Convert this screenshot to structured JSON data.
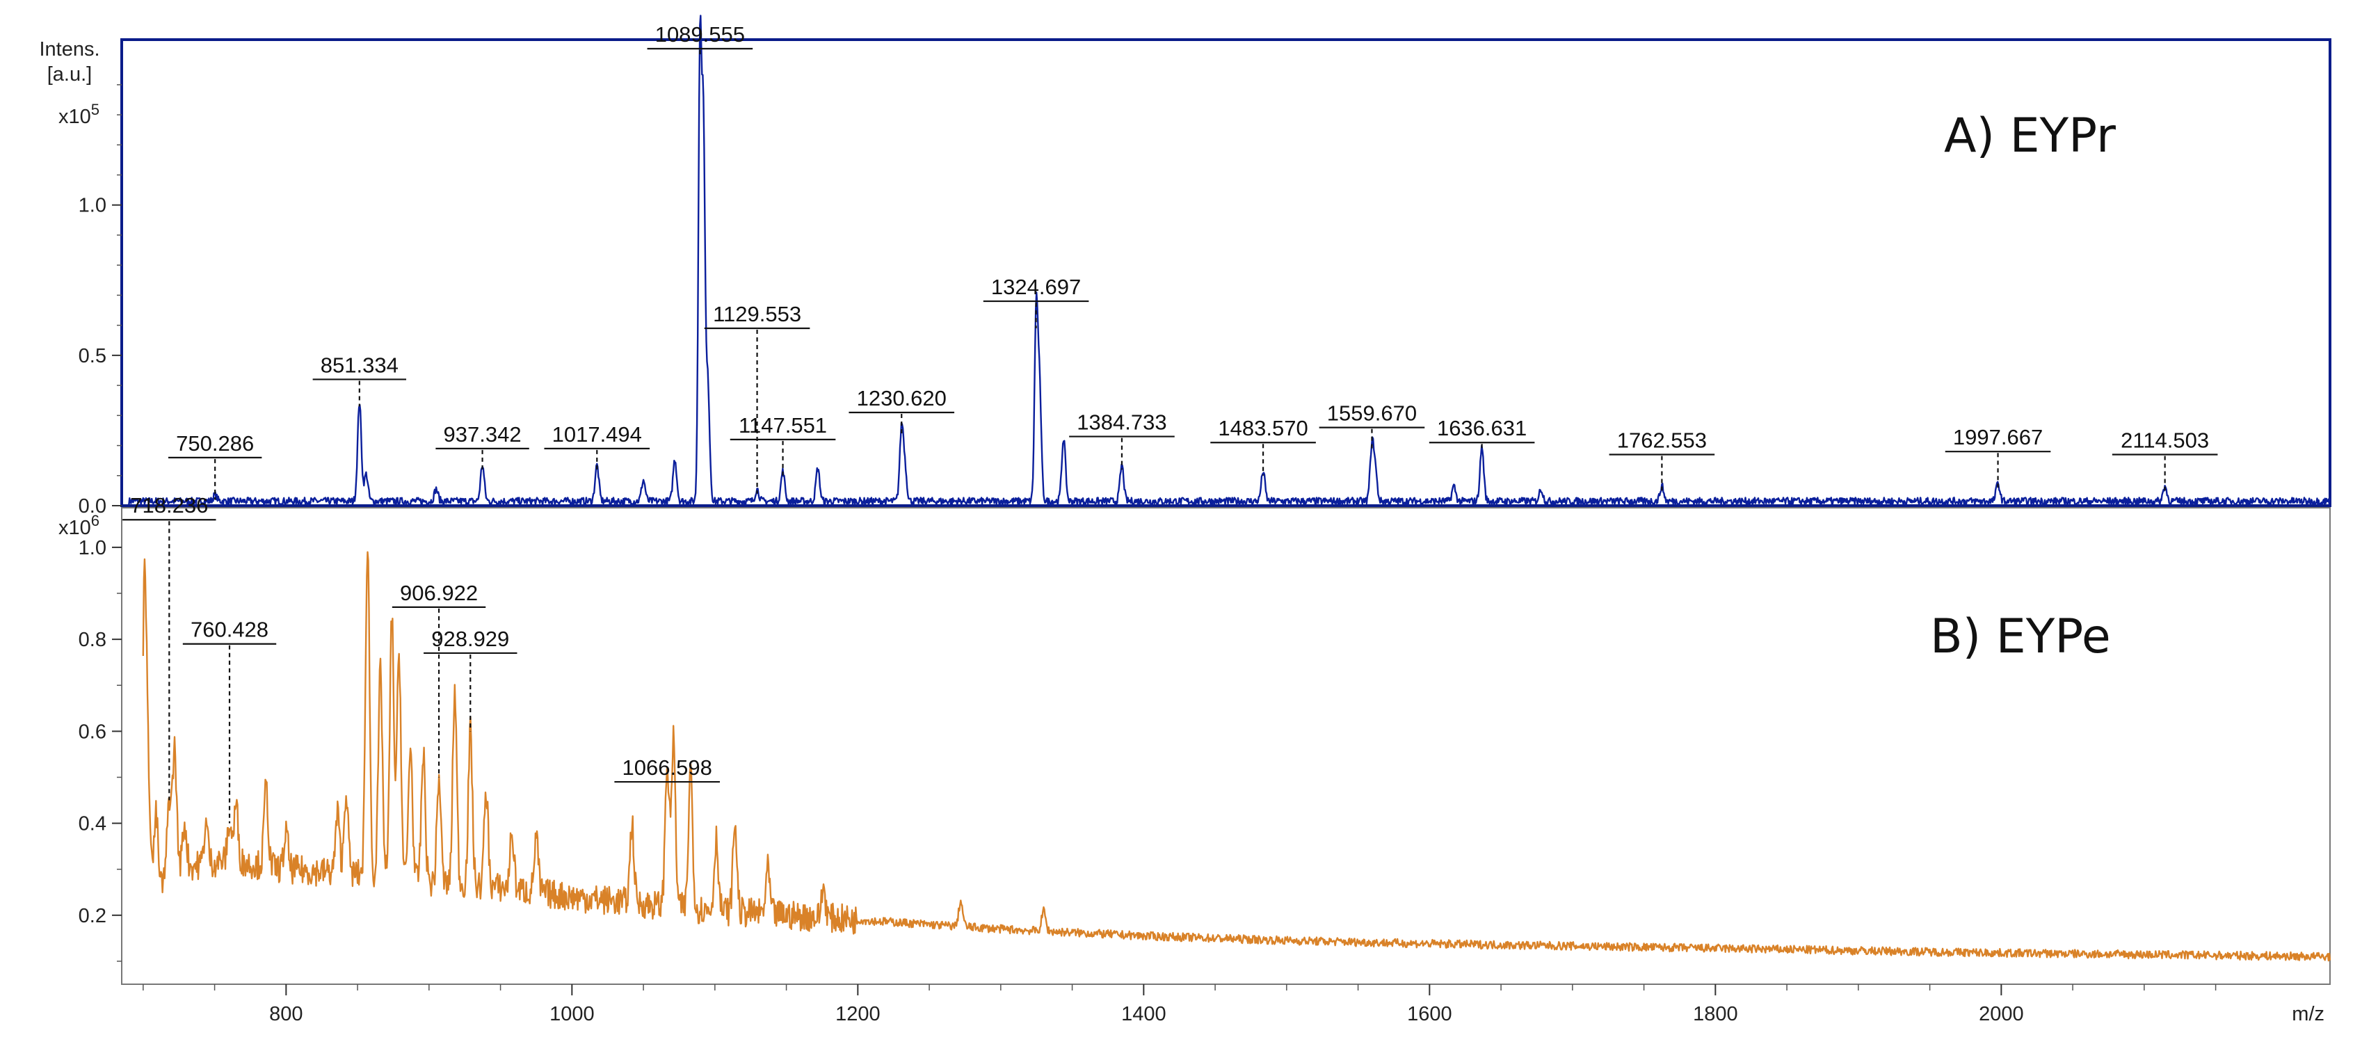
{
  "chart_data": [
    {
      "type": "line",
      "panel": "A",
      "title": "A) EYPr",
      "ylabel": [
        "Intens.",
        "[a.u.]"
      ],
      "y_multiplier": "x10",
      "y_multiplier_exp": "5",
      "ylim": [
        0,
        1.55
      ],
      "yticks": [
        0.0,
        0.5,
        1.0
      ],
      "ytick_labels": [
        "0.0",
        "0.5",
        "1.0"
      ],
      "xlim": [
        685,
        2230
      ],
      "color": "#0b1f9c",
      "baseline": 0.015,
      "noise": 0.012,
      "peaks": [
        {
          "x": 750.286,
          "y": 0.02,
          "label": "750.286",
          "labelY": 0.16
        },
        {
          "x": 851.334,
          "y": 0.33,
          "label": "851.334",
          "labelY": 0.42
        },
        {
          "x": 937.342,
          "y": 0.12,
          "label": "937.342",
          "labelY": 0.19
        },
        {
          "x": 1017.494,
          "y": 0.12,
          "label": "1017.494",
          "labelY": 0.19
        },
        {
          "x": 1089.555,
          "y": 1.5,
          "label": "1089.555",
          "labelY": 1.72
        },
        {
          "x": 1129.553,
          "y": 0.04,
          "label": "1129.553",
          "labelY": 0.59
        },
        {
          "x": 1147.551,
          "y": 0.1,
          "label": "1147.551",
          "labelY": 0.22
        },
        {
          "x": 1230.62,
          "y": 0.24,
          "label": "1230.620",
          "labelY": 0.31
        },
        {
          "x": 1324.697,
          "y": 0.59,
          "label": "1324.697",
          "labelY": 0.68
        },
        {
          "x": 1384.733,
          "y": 0.12,
          "label": "1384.733",
          "labelY": 0.23
        },
        {
          "x": 1483.57,
          "y": 0.1,
          "label": "1483.570",
          "labelY": 0.21
        },
        {
          "x": 1559.67,
          "y": 0.18,
          "label": "1559.670",
          "labelY": 0.26
        },
        {
          "x": 1636.631,
          "y": 0.18,
          "label": "1636.631",
          "labelY": 0.21
        },
        {
          "x": 1762.553,
          "y": 0.05,
          "label": "1762.553",
          "labelY": 0.17
        },
        {
          "x": 1997.667,
          "y": 0.06,
          "label": "1997.667",
          "labelY": 0.18
        },
        {
          "x": 2114.503,
          "y": 0.05,
          "label": "2114.503",
          "labelY": 0.17
        }
      ],
      "extra_peaks": [
        {
          "x": 856,
          "y": 0.09
        },
        {
          "x": 905,
          "y": 0.04
        },
        {
          "x": 1050,
          "y": 0.07
        },
        {
          "x": 1072,
          "y": 0.14
        },
        {
          "x": 1092,
          "y": 1.2
        },
        {
          "x": 1095,
          "y": 0.4
        },
        {
          "x": 1172,
          "y": 0.11
        },
        {
          "x": 1233,
          "y": 0.1
        },
        {
          "x": 1327,
          "y": 0.4
        },
        {
          "x": 1344,
          "y": 0.21
        },
        {
          "x": 1562,
          "y": 0.1
        },
        {
          "x": 1617,
          "y": 0.05
        },
        {
          "x": 1678,
          "y": 0.04
        }
      ]
    },
    {
      "type": "line",
      "panel": "B",
      "title": "B) EYPe",
      "y_multiplier": "x10",
      "y_multiplier_exp": "6",
      "ylim": [
        0.05,
        1.08
      ],
      "yticks": [
        0.2,
        0.4,
        0.6,
        0.8,
        1.0
      ],
      "ytick_labels": [
        "0.2",
        "0.4",
        "0.6",
        "0.8",
        "1.0"
      ],
      "xlim": [
        685,
        2230
      ],
      "xticks": [
        800,
        1000,
        1200,
        1400,
        1600,
        1800,
        2000
      ],
      "xtick_labels": [
        "800",
        "1000",
        "1200",
        "1400",
        "1600",
        "1800",
        "2000"
      ],
      "xlabel": "m/z",
      "color": "#d98228",
      "noise": 0.02,
      "envelope": [
        [
          700,
          0.2
        ],
        [
          720,
          0.3
        ],
        [
          760,
          0.32
        ],
        [
          800,
          0.3
        ],
        [
          850,
          0.29
        ],
        [
          900,
          0.27
        ],
        [
          950,
          0.26
        ],
        [
          1000,
          0.24
        ],
        [
          1100,
          0.21
        ],
        [
          1200,
          0.19
        ],
        [
          1300,
          0.17
        ],
        [
          1400,
          0.155
        ],
        [
          1500,
          0.145
        ],
        [
          1600,
          0.138
        ],
        [
          1800,
          0.128
        ],
        [
          2000,
          0.118
        ],
        [
          2230,
          0.11
        ]
      ],
      "peaks": [
        {
          "x": 718.236,
          "y": 0.45,
          "label": "718.236",
          "labelY": 1.06
        },
        {
          "x": 760.428,
          "y": 0.4,
          "label": "760.428",
          "labelY": 0.79
        },
        {
          "x": 906.922,
          "y": 0.5,
          "label": "906.922",
          "labelY": 0.87
        },
        {
          "x": 928.929,
          "y": 0.6,
          "label": "928.929",
          "labelY": 0.77
        },
        {
          "x": 1066.598,
          "y": 0.53,
          "label": "1066.598",
          "labelY": 0.49
        }
      ],
      "extra_peaks": [
        {
          "x": 701,
          "y": 0.96
        },
        {
          "x": 704,
          "y": 0.45
        },
        {
          "x": 709,
          "y": 0.42
        },
        {
          "x": 722,
          "y": 0.56
        },
        {
          "x": 729,
          "y": 0.4
        },
        {
          "x": 744,
          "y": 0.4
        },
        {
          "x": 765,
          "y": 0.44
        },
        {
          "x": 786,
          "y": 0.48
        },
        {
          "x": 800,
          "y": 0.38
        },
        {
          "x": 836,
          "y": 0.42
        },
        {
          "x": 842,
          "y": 0.47
        },
        {
          "x": 857,
          "y": 1.01
        },
        {
          "x": 866,
          "y": 0.73
        },
        {
          "x": 874,
          "y": 0.85
        },
        {
          "x": 879,
          "y": 0.77
        },
        {
          "x": 887,
          "y": 0.57
        },
        {
          "x": 896,
          "y": 0.55
        },
        {
          "x": 918,
          "y": 0.69
        },
        {
          "x": 940,
          "y": 0.47
        },
        {
          "x": 958,
          "y": 0.38
        },
        {
          "x": 975,
          "y": 0.37
        },
        {
          "x": 1042,
          "y": 0.4
        },
        {
          "x": 1071,
          "y": 0.58
        },
        {
          "x": 1083,
          "y": 0.52
        },
        {
          "x": 1101,
          "y": 0.37
        },
        {
          "x": 1114,
          "y": 0.4
        },
        {
          "x": 1137,
          "y": 0.3
        },
        {
          "x": 1176,
          "y": 0.26
        },
        {
          "x": 1272,
          "y": 0.23
        },
        {
          "x": 1330,
          "y": 0.21
        }
      ]
    }
  ]
}
